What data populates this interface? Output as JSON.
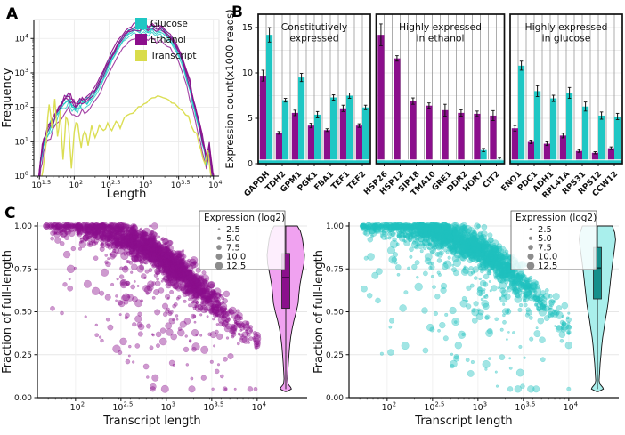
{
  "labels": {
    "A": "A",
    "B": "B",
    "C": "C"
  },
  "colors": {
    "glucose": "#1FC7C4",
    "ethanol": "#8B0F8C",
    "transcript": "#D9DC4A",
    "grid_light": "#e9e9e9",
    "grid_sep": "#8a8a8a",
    "axis": "#111111",
    "legend_dot": "#8c8c8c",
    "panel_border": "#111111"
  },
  "chart_data": [
    {
      "id": "A",
      "type": "line",
      "xscale": "log10",
      "yscale": "log10",
      "xlabel": "Length",
      "ylabel": "Frequency",
      "xticks_exp": [
        "1.5",
        "2",
        "2.5",
        "3",
        "3.5",
        "4"
      ],
      "yticks_exp": [
        "0",
        "1",
        "2",
        "3",
        "4"
      ],
      "xrange": [
        1.42,
        4.08
      ],
      "yrange": [
        0,
        4.55
      ],
      "legend": [
        {
          "label": "Glucose",
          "color": "#1FC7C4"
        },
        {
          "label": "Ethanol",
          "color": "#8B0F8C"
        },
        {
          "label": "Transcript",
          "color": "#D9DC4A"
        }
      ],
      "series": [
        {
          "name": "Glucose",
          "color": "#1FC7C4",
          "base": "main",
          "offsets": [
            0.02,
            -0.05,
            -0.11,
            -0.17
          ],
          "width": 1.0
        },
        {
          "name": "Ethanol",
          "color": "#8B0F8C",
          "base": "main",
          "offsets": [
            0.1,
            0.03,
            -0.04,
            -0.33
          ],
          "width": 1.1
        },
        {
          "name": "Transcript",
          "color": "#D9DC4A",
          "base": "transcript",
          "offsets": [
            0
          ],
          "width": 1.4
        }
      ],
      "base_curves": {
        "main": [
          [
            1.48,
            -0.3
          ],
          [
            1.52,
            0.5
          ],
          [
            1.56,
            1.0
          ],
          [
            1.62,
            1.35
          ],
          [
            1.7,
            1.65
          ],
          [
            1.78,
            1.95
          ],
          [
            1.86,
            2.2
          ],
          [
            1.92,
            2.3
          ],
          [
            1.97,
            2.12
          ],
          [
            2.02,
            2.0
          ],
          [
            2.08,
            2.15
          ],
          [
            2.15,
            2.22
          ],
          [
            2.22,
            2.28
          ],
          [
            2.3,
            2.5
          ],
          [
            2.38,
            2.8
          ],
          [
            2.46,
            3.15
          ],
          [
            2.54,
            3.5
          ],
          [
            2.62,
            3.8
          ],
          [
            2.7,
            4.05
          ],
          [
            2.78,
            4.22
          ],
          [
            2.86,
            4.32
          ],
          [
            2.94,
            4.28
          ],
          [
            3.0,
            4.38
          ],
          [
            3.06,
            4.25
          ],
          [
            3.12,
            4.36
          ],
          [
            3.18,
            4.22
          ],
          [
            3.24,
            4.3
          ],
          [
            3.3,
            4.18
          ],
          [
            3.38,
            4.05
          ],
          [
            3.46,
            3.8
          ],
          [
            3.54,
            3.45
          ],
          [
            3.62,
            2.95
          ],
          [
            3.7,
            2.3
          ],
          [
            3.78,
            1.6
          ],
          [
            3.84,
            1.1
          ],
          [
            3.9,
            0.5
          ],
          [
            3.94,
            0.9
          ],
          [
            3.98,
            0.2
          ],
          [
            4.02,
            -0.3
          ]
        ],
        "transcript": [
          [
            1.5,
            -0.4
          ],
          [
            1.55,
            0.1
          ],
          [
            1.6,
            1.1
          ],
          [
            1.64,
            2.15
          ],
          [
            1.68,
            1.3
          ],
          [
            1.72,
            2.3
          ],
          [
            1.76,
            1.1
          ],
          [
            1.8,
            1.85
          ],
          [
            1.84,
            0.5
          ],
          [
            1.88,
            1.75
          ],
          [
            1.92,
            1.5
          ],
          [
            1.96,
            0.2
          ],
          [
            2.0,
            1.35
          ],
          [
            2.05,
            1.6
          ],
          [
            2.1,
            0.8
          ],
          [
            2.15,
            1.4
          ],
          [
            2.2,
            0.95
          ],
          [
            2.25,
            1.45
          ],
          [
            2.3,
            1.1
          ],
          [
            2.36,
            1.5
          ],
          [
            2.42,
            1.25
          ],
          [
            2.48,
            1.55
          ],
          [
            2.54,
            1.3
          ],
          [
            2.6,
            1.6
          ],
          [
            2.66,
            1.4
          ],
          [
            2.72,
            1.7
          ],
          [
            2.8,
            1.8
          ],
          [
            2.88,
            1.92
          ],
          [
            2.96,
            2.05
          ],
          [
            3.04,
            2.15
          ],
          [
            3.12,
            2.25
          ],
          [
            3.2,
            2.35
          ],
          [
            3.28,
            2.3
          ],
          [
            3.36,
            2.22
          ],
          [
            3.44,
            2.1
          ],
          [
            3.52,
            1.98
          ],
          [
            3.6,
            1.8
          ],
          [
            3.68,
            1.55
          ],
          [
            3.76,
            1.2
          ],
          [
            3.82,
            0.8
          ],
          [
            3.88,
            0.4
          ],
          [
            3.92,
            0.75
          ],
          [
            3.96,
            0.1
          ],
          [
            4.0,
            -0.4
          ]
        ]
      }
    },
    {
      "id": "B",
      "type": "bar",
      "ylabel": "Expression count(x1000 reads)",
      "ylim": [
        0,
        15
      ],
      "yticks": [
        0,
        5,
        10,
        15
      ],
      "series": [
        "Ethanol",
        "Glucose"
      ],
      "groups": [
        {
          "title": "Constitutively expressed",
          "title_lines": [
            "Constitutively",
            "expressed"
          ],
          "genes": [
            "GAPDH",
            "TDH2",
            "GPM1",
            "PGK1",
            "FBA1",
            "TEF1",
            "TEF2"
          ],
          "ethanol": [
            9.7,
            3.4,
            5.6,
            4.2,
            3.7,
            6.1,
            4.2
          ],
          "ethanol_err": [
            0.6,
            0.15,
            0.3,
            0.25,
            0.15,
            0.35,
            0.2
          ],
          "glucose": [
            14.2,
            7.0,
            9.5,
            5.4,
            7.3,
            7.5,
            6.2
          ],
          "glucose_err": [
            0.8,
            0.2,
            0.45,
            0.35,
            0.3,
            0.3,
            0.25
          ]
        },
        {
          "title": "Highly expressed in ethanol",
          "title_lines": [
            "Highly expressed",
            "in ethanol"
          ],
          "genes": [
            "HSP26",
            "HSP12",
            "SIP18",
            "TMA10",
            "GRE1",
            "DDR2",
            "HOR7",
            "CIT2"
          ],
          "ethanol": [
            14.2,
            11.6,
            6.9,
            6.4,
            5.9,
            5.6,
            5.5,
            5.3
          ],
          "ethanol_err": [
            1.2,
            0.3,
            0.35,
            0.3,
            0.65,
            0.35,
            0.3,
            0.55
          ],
          "glucose": [
            0.15,
            0.3,
            0.1,
            0.1,
            0.1,
            0.1,
            1.5,
            0.5
          ],
          "glucose_err": [
            0.05,
            0.1,
            0.04,
            0.04,
            0.04,
            0.04,
            0.18,
            0.12
          ]
        },
        {
          "title": "Highly expressed in glucose",
          "title_lines": [
            "Highly expressed",
            "in glucose"
          ],
          "genes": [
            "ENO1",
            "PDC1",
            "ADH1",
            "RPL41A",
            "RPS31",
            "RPS12",
            "CCW12"
          ],
          "ethanol": [
            3.9,
            2.4,
            2.2,
            3.1,
            1.4,
            1.2,
            1.7
          ],
          "ethanol_err": [
            0.3,
            0.2,
            0.2,
            0.25,
            0.15,
            0.12,
            0.15
          ],
          "glucose": [
            10.8,
            8.0,
            7.2,
            7.8,
            6.3,
            5.3,
            5.2
          ],
          "glucose_err": [
            0.5,
            0.6,
            0.35,
            0.6,
            0.5,
            0.4,
            0.35
          ]
        }
      ]
    },
    {
      "id": "C-left",
      "type": "scatter-violin",
      "condition": "Ethanol",
      "xlabel": "Transcript length",
      "ylabel": "Fraction of full-length",
      "xscale": "log10",
      "xticks_exp": [
        "2",
        "2.5",
        "3",
        "3.5",
        "4"
      ],
      "ytick_labels": [
        "0.00",
        "0.25",
        "0.50",
        "0.75",
        "1.00"
      ],
      "legend": {
        "title": "Expression (log2)",
        "sizes": [
          "2.5",
          "5.0",
          "7.5",
          "10.0",
          "12.5"
        ]
      },
      "point_color": "#8B0F8C",
      "violin_fill": "#F0A2F0",
      "box_fill": "#8B0F8C",
      "median_color": "#4c0350",
      "scatter": {
        "n": 1900,
        "seed": 7,
        "mid": 3.55,
        "slope": 0.45,
        "out_p": 0.17,
        "trend_note": "fraction ~1.0 below 300 nt, declines to ~0.4 at 10^3.9"
      },
      "box": {
        "q1": 0.52,
        "q3": 0.84,
        "median": 0.7,
        "w_low": 0.05,
        "w_high": 1.0
      },
      "violin_profile": [
        [
          1.0,
          0.62
        ],
        [
          0.97,
          0.78
        ],
        [
          0.93,
          0.88
        ],
        [
          0.88,
          0.95
        ],
        [
          0.83,
          1.0
        ],
        [
          0.78,
          0.97
        ],
        [
          0.72,
          0.86
        ],
        [
          0.66,
          0.76
        ],
        [
          0.6,
          0.7
        ],
        [
          0.55,
          0.66
        ],
        [
          0.5,
          0.56
        ],
        [
          0.45,
          0.44
        ],
        [
          0.4,
          0.34
        ],
        [
          0.35,
          0.26
        ],
        [
          0.3,
          0.21
        ],
        [
          0.25,
          0.17
        ],
        [
          0.2,
          0.14
        ],
        [
          0.15,
          0.11
        ],
        [
          0.11,
          0.09
        ],
        [
          0.08,
          0.12
        ],
        [
          0.06,
          0.26
        ],
        [
          0.05,
          0.3
        ],
        [
          0.04,
          0.12
        ],
        [
          0.035,
          0.04
        ]
      ]
    },
    {
      "id": "C-right",
      "type": "scatter-violin",
      "condition": "Glucose",
      "xlabel": "Transcript length",
      "ylabel": "Fraction of full-length",
      "xscale": "log10",
      "xticks_exp": [
        "2",
        "2.5",
        "3",
        "3.5",
        "4"
      ],
      "ytick_labels": [
        "0.00",
        "0.25",
        "0.50",
        "0.75",
        "1.00"
      ],
      "legend": {
        "title": "Expression (log2)",
        "sizes": [
          "2.5",
          "5.0",
          "7.5",
          "10.0",
          "12.5"
        ]
      },
      "point_color": "#1FC0BE",
      "violin_fill": "#A9EFEC",
      "box_fill": "#168F8B",
      "median_color": "#043f3e",
      "scatter": {
        "n": 1900,
        "seed": 13,
        "mid": 3.75,
        "slope": 0.45,
        "out_p": 0.15,
        "trend_note": "fraction ~1.0 below 400 nt, declines to ~0.45 at 10^3.9"
      },
      "box": {
        "q1": 0.575,
        "q3": 0.875,
        "median": 0.755,
        "w_low": 0.05,
        "w_high": 1.0
      },
      "violin_profile": [
        [
          1.0,
          0.8
        ],
        [
          0.96,
          0.93
        ],
        [
          0.92,
          0.97
        ],
        [
          0.88,
          0.93
        ],
        [
          0.84,
          0.88
        ],
        [
          0.8,
          0.83
        ],
        [
          0.75,
          0.77
        ],
        [
          0.7,
          0.72
        ],
        [
          0.65,
          0.67
        ],
        [
          0.6,
          0.62
        ],
        [
          0.55,
          0.57
        ],
        [
          0.5,
          0.5
        ],
        [
          0.45,
          0.42
        ],
        [
          0.4,
          0.35
        ],
        [
          0.35,
          0.28
        ],
        [
          0.3,
          0.23
        ],
        [
          0.25,
          0.19
        ],
        [
          0.2,
          0.15
        ],
        [
          0.15,
          0.12
        ],
        [
          0.1,
          0.09
        ],
        [
          0.08,
          0.13
        ],
        [
          0.06,
          0.28
        ],
        [
          0.05,
          0.32
        ],
        [
          0.04,
          0.13
        ],
        [
          0.035,
          0.05
        ]
      ]
    }
  ]
}
